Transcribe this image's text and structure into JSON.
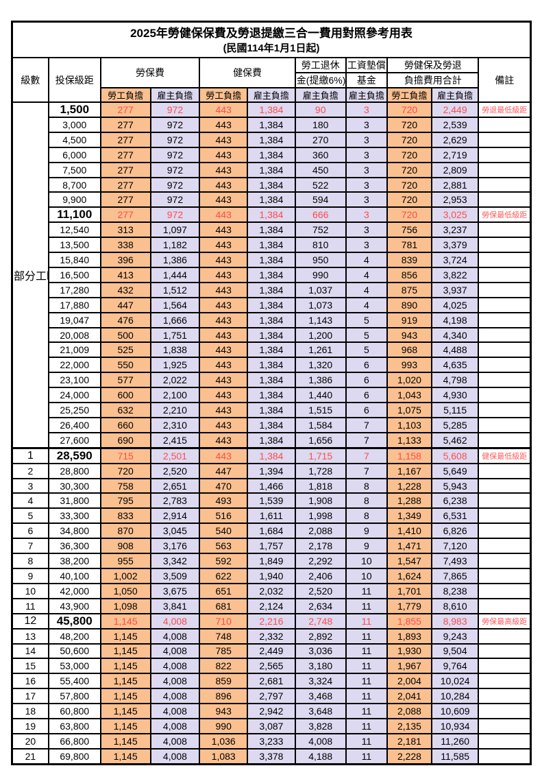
{
  "title": "2025年勞健保保費及勞退提繳三合一費用對照參考用表",
  "subtitle": "(民國114年1月1日起)",
  "colors": {
    "employee_column_bg": "#FAC090",
    "employer_column_bg": "#DCD9F0",
    "highlight_text": "#FF4B4B",
    "remark_text": "#FF5C5C",
    "grid_border": "#000000"
  },
  "table": {
    "headers": {
      "level": "級數",
      "bracket": "投保級距",
      "labor_insurance": "勞保費",
      "health_insurance": "健保費",
      "pension_line1": "勞工退休",
      "pension_line2": "金(提繳6%)",
      "wage_fund_line1": "工資墊償",
      "wage_fund_line2": "基金",
      "total_line1": "勞健保及勞退",
      "total_line2": "負擔費用合計",
      "remark": "備註",
      "employee_share": "勞工負擔",
      "employer_share": "雇主負擔"
    },
    "part_time_label": "部分工時",
    "part_time_row_count": 23,
    "rows": [
      {
        "level": "",
        "bracket": "1,500",
        "values": [
          "277",
          "972",
          "443",
          "1,384",
          "90",
          "3",
          "720",
          "2,449"
        ],
        "remark": "勞退最低級距",
        "highlight": true
      },
      {
        "level": "",
        "bracket": "3,000",
        "values": [
          "277",
          "972",
          "443",
          "1,384",
          "180",
          "3",
          "720",
          "2,539"
        ],
        "remark": "",
        "highlight": false
      },
      {
        "level": "",
        "bracket": "4,500",
        "values": [
          "277",
          "972",
          "443",
          "1,384",
          "270",
          "3",
          "720",
          "2,629"
        ],
        "remark": "",
        "highlight": false
      },
      {
        "level": "",
        "bracket": "6,000",
        "values": [
          "277",
          "972",
          "443",
          "1,384",
          "360",
          "3",
          "720",
          "2,719"
        ],
        "remark": "",
        "highlight": false
      },
      {
        "level": "",
        "bracket": "7,500",
        "values": [
          "277",
          "972",
          "443",
          "1,384",
          "450",
          "3",
          "720",
          "2,809"
        ],
        "remark": "",
        "highlight": false
      },
      {
        "level": "",
        "bracket": "8,700",
        "values": [
          "277",
          "972",
          "443",
          "1,384",
          "522",
          "3",
          "720",
          "2,881"
        ],
        "remark": "",
        "highlight": false
      },
      {
        "level": "",
        "bracket": "9,900",
        "values": [
          "277",
          "972",
          "443",
          "1,384",
          "594",
          "3",
          "720",
          "2,953"
        ],
        "remark": "",
        "highlight": false
      },
      {
        "level": "",
        "bracket": "11,100",
        "values": [
          "277",
          "972",
          "443",
          "1,384",
          "666",
          "3",
          "720",
          "3,025"
        ],
        "remark": "勞保最低級距",
        "highlight": true
      },
      {
        "level": "",
        "bracket": "12,540",
        "values": [
          "313",
          "1,097",
          "443",
          "1,384",
          "752",
          "3",
          "756",
          "3,237"
        ],
        "remark": "",
        "highlight": false
      },
      {
        "level": "",
        "bracket": "13,500",
        "values": [
          "338",
          "1,182",
          "443",
          "1,384",
          "810",
          "3",
          "781",
          "3,379"
        ],
        "remark": "",
        "highlight": false
      },
      {
        "level": "",
        "bracket": "15,840",
        "values": [
          "396",
          "1,386",
          "443",
          "1,384",
          "950",
          "4",
          "839",
          "3,724"
        ],
        "remark": "",
        "highlight": false
      },
      {
        "level": "",
        "bracket": "16,500",
        "values": [
          "413",
          "1,444",
          "443",
          "1,384",
          "990",
          "4",
          "856",
          "3,822"
        ],
        "remark": "",
        "highlight": false
      },
      {
        "level": "",
        "bracket": "17,280",
        "values": [
          "432",
          "1,512",
          "443",
          "1,384",
          "1,037",
          "4",
          "875",
          "3,937"
        ],
        "remark": "",
        "highlight": false
      },
      {
        "level": "",
        "bracket": "17,880",
        "values": [
          "447",
          "1,564",
          "443",
          "1,384",
          "1,073",
          "4",
          "890",
          "4,025"
        ],
        "remark": "",
        "highlight": false
      },
      {
        "level": "",
        "bracket": "19,047",
        "values": [
          "476",
          "1,666",
          "443",
          "1,384",
          "1,143",
          "5",
          "919",
          "4,198"
        ],
        "remark": "",
        "highlight": false
      },
      {
        "level": "",
        "bracket": "20,008",
        "values": [
          "500",
          "1,751",
          "443",
          "1,384",
          "1,200",
          "5",
          "943",
          "4,340"
        ],
        "remark": "",
        "highlight": false
      },
      {
        "level": "",
        "bracket": "21,009",
        "values": [
          "525",
          "1,838",
          "443",
          "1,384",
          "1,261",
          "5",
          "968",
          "4,488"
        ],
        "remark": "",
        "highlight": false
      },
      {
        "level": "",
        "bracket": "22,000",
        "values": [
          "550",
          "1,925",
          "443",
          "1,384",
          "1,320",
          "6",
          "993",
          "4,635"
        ],
        "remark": "",
        "highlight": false
      },
      {
        "level": "",
        "bracket": "23,100",
        "values": [
          "577",
          "2,022",
          "443",
          "1,384",
          "1,386",
          "6",
          "1,020",
          "4,798"
        ],
        "remark": "",
        "highlight": false
      },
      {
        "level": "",
        "bracket": "24,000",
        "values": [
          "600",
          "2,100",
          "443",
          "1,384",
          "1,440",
          "6",
          "1,043",
          "4,930"
        ],
        "remark": "",
        "highlight": false
      },
      {
        "level": "",
        "bracket": "25,250",
        "values": [
          "632",
          "2,210",
          "443",
          "1,384",
          "1,515",
          "6",
          "1,075",
          "5,115"
        ],
        "remark": "",
        "highlight": false
      },
      {
        "level": "",
        "bracket": "26,400",
        "values": [
          "660",
          "2,310",
          "443",
          "1,384",
          "1,584",
          "7",
          "1,103",
          "5,285"
        ],
        "remark": "",
        "highlight": false
      },
      {
        "level": "",
        "bracket": "27,600",
        "values": [
          "690",
          "2,415",
          "443",
          "1,384",
          "1,656",
          "7",
          "1,133",
          "5,462"
        ],
        "remark": "",
        "highlight": false
      },
      {
        "level": "1",
        "bracket": "28,590",
        "values": [
          "715",
          "2,501",
          "443",
          "1,384",
          "1,715",
          "7",
          "1,158",
          "5,608"
        ],
        "remark": "健保最低級距",
        "highlight": true
      },
      {
        "level": "2",
        "bracket": "28,800",
        "values": [
          "720",
          "2,520",
          "447",
          "1,394",
          "1,728",
          "7",
          "1,167",
          "5,649"
        ],
        "remark": "",
        "highlight": false
      },
      {
        "level": "3",
        "bracket": "30,300",
        "values": [
          "758",
          "2,651",
          "470",
          "1,466",
          "1,818",
          "8",
          "1,228",
          "5,943"
        ],
        "remark": "",
        "highlight": false
      },
      {
        "level": "4",
        "bracket": "31,800",
        "values": [
          "795",
          "2,783",
          "493",
          "1,539",
          "1,908",
          "8",
          "1,288",
          "6,238"
        ],
        "remark": "",
        "highlight": false
      },
      {
        "level": "5",
        "bracket": "33,300",
        "values": [
          "833",
          "2,914",
          "516",
          "1,611",
          "1,998",
          "8",
          "1,349",
          "6,531"
        ],
        "remark": "",
        "highlight": false
      },
      {
        "level": "6",
        "bracket": "34,800",
        "values": [
          "870",
          "3,045",
          "540",
          "1,684",
          "2,088",
          "9",
          "1,410",
          "6,826"
        ],
        "remark": "",
        "highlight": false
      },
      {
        "level": "7",
        "bracket": "36,300",
        "values": [
          "908",
          "3,176",
          "563",
          "1,757",
          "2,178",
          "9",
          "1,471",
          "7,120"
        ],
        "remark": "",
        "highlight": false
      },
      {
        "level": "8",
        "bracket": "38,200",
        "values": [
          "955",
          "3,342",
          "592",
          "1,849",
          "2,292",
          "10",
          "1,547",
          "7,493"
        ],
        "remark": "",
        "highlight": false
      },
      {
        "level": "9",
        "bracket": "40,100",
        "values": [
          "1,002",
          "3,509",
          "622",
          "1,940",
          "2,406",
          "10",
          "1,624",
          "7,865"
        ],
        "remark": "",
        "highlight": false
      },
      {
        "level": "10",
        "bracket": "42,000",
        "values": [
          "1,050",
          "3,675",
          "651",
          "2,032",
          "2,520",
          "11",
          "1,701",
          "8,238"
        ],
        "remark": "",
        "highlight": false
      },
      {
        "level": "11",
        "bracket": "43,900",
        "values": [
          "1,098",
          "3,841",
          "681",
          "2,124",
          "2,634",
          "11",
          "1,779",
          "8,610"
        ],
        "remark": "",
        "highlight": false
      },
      {
        "level": "12",
        "bracket": "45,800",
        "values": [
          "1,145",
          "4,008",
          "710",
          "2,216",
          "2,748",
          "11",
          "1,855",
          "8,983"
        ],
        "remark": "勞保最高級距",
        "highlight": true
      },
      {
        "level": "13",
        "bracket": "48,200",
        "values": [
          "1,145",
          "4,008",
          "748",
          "2,332",
          "2,892",
          "11",
          "1,893",
          "9,243"
        ],
        "remark": "",
        "highlight": false
      },
      {
        "level": "14",
        "bracket": "50,600",
        "values": [
          "1,145",
          "4,008",
          "785",
          "2,449",
          "3,036",
          "11",
          "1,930",
          "9,504"
        ],
        "remark": "",
        "highlight": false
      },
      {
        "level": "15",
        "bracket": "53,000",
        "values": [
          "1,145",
          "4,008",
          "822",
          "2,565",
          "3,180",
          "11",
          "1,967",
          "9,764"
        ],
        "remark": "",
        "highlight": false
      },
      {
        "level": "16",
        "bracket": "55,400",
        "values": [
          "1,145",
          "4,008",
          "859",
          "2,681",
          "3,324",
          "11",
          "2,004",
          "10,024"
        ],
        "remark": "",
        "highlight": false
      },
      {
        "level": "17",
        "bracket": "57,800",
        "values": [
          "1,145",
          "4,008",
          "896",
          "2,797",
          "3,468",
          "11",
          "2,041",
          "10,284"
        ],
        "remark": "",
        "highlight": false
      },
      {
        "level": "18",
        "bracket": "60,800",
        "values": [
          "1,145",
          "4,008",
          "943",
          "2,942",
          "3,648",
          "11",
          "2,088",
          "10,609"
        ],
        "remark": "",
        "highlight": false
      },
      {
        "level": "19",
        "bracket": "63,800",
        "values": [
          "1,145",
          "4,008",
          "990",
          "3,087",
          "3,828",
          "11",
          "2,135",
          "10,934"
        ],
        "remark": "",
        "highlight": false
      },
      {
        "level": "20",
        "bracket": "66,800",
        "values": [
          "1,145",
          "4,008",
          "1,036",
          "3,233",
          "4,008",
          "11",
          "2,181",
          "11,260"
        ],
        "remark": "",
        "highlight": false
      },
      {
        "level": "21",
        "bracket": "69,800",
        "values": [
          "1,145",
          "4,008",
          "1,083",
          "3,378",
          "4,188",
          "11",
          "2,228",
          "11,585"
        ],
        "remark": "",
        "highlight": false
      }
    ]
  }
}
